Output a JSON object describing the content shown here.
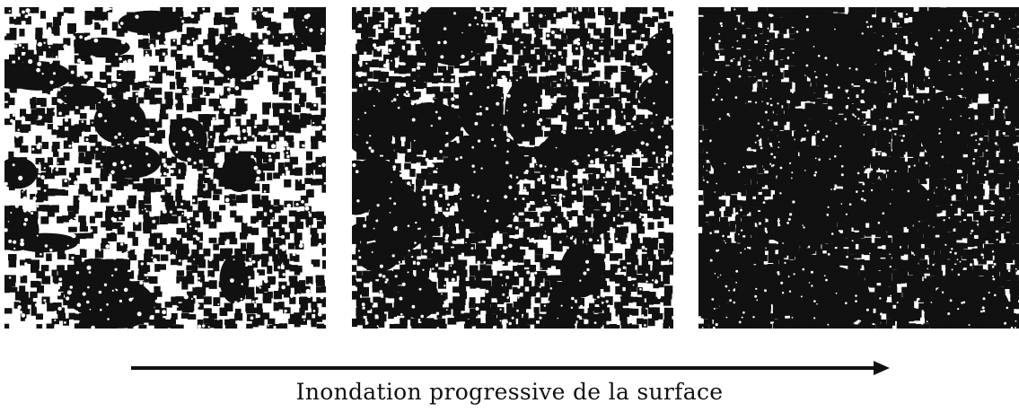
{
  "panels": [
    {
      "id": "panel-1",
      "black_fraction": 0.38,
      "seed": 11
    },
    {
      "id": "panel-2",
      "black_fraction": 0.58,
      "seed": 23
    },
    {
      "id": "panel-3",
      "black_fraction": 0.84,
      "seed": 37
    }
  ],
  "caption": "Inondation progressive de la surface",
  "colors": {
    "background": "#ffffff",
    "foreground": "#111111"
  }
}
